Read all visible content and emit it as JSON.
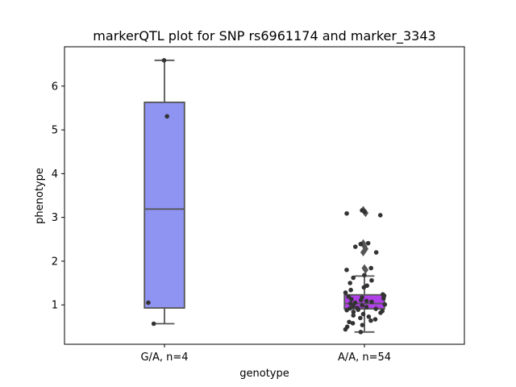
{
  "chart_data": {
    "type": "box",
    "title": "markerQTL plot for SNP rs6961174 and marker_3343",
    "xlabel": "genotype",
    "ylabel": "phenotype",
    "ylim": [
      0.1,
      6.9
    ],
    "yticks": [
      1,
      2,
      3,
      4,
      5,
      6
    ],
    "grid": false,
    "categories": [
      "G/A, n=4",
      "A/A, n=54"
    ],
    "boxes": [
      {
        "category": "G/A, n=4",
        "color": "#8f93f2",
        "q1": 0.93,
        "median": 3.19,
        "q3": 5.63,
        "whisker_low": 0.57,
        "whisker_high": 6.59,
        "outliers": []
      },
      {
        "category": "A/A, n=54",
        "color": "#b040e8",
        "q1": 0.91,
        "median": 1.03,
        "q3": 1.23,
        "whisker_low": 0.38,
        "whisker_high": 1.66,
        "outliers": [
          3.17,
          3.13,
          3.1,
          2.41,
          2.34,
          2.28,
          2.2,
          1.84,
          1.8
        ]
      }
    ],
    "points": [
      {
        "category": "G/A, n=4",
        "values": [
          6.59,
          5.31,
          1.05,
          0.57
        ]
      },
      {
        "category": "A/A, n=54",
        "values": [
          3.16,
          3.13,
          3.09,
          3.05,
          2.41,
          2.39,
          2.33,
          2.2,
          1.84,
          1.8,
          1.68,
          1.62,
          1.56,
          1.5,
          1.44,
          1.4,
          1.34,
          1.28,
          1.24,
          1.21,
          1.19,
          1.17,
          1.15,
          1.13,
          1.11,
          1.09,
          1.07,
          1.05,
          1.03,
          1.01,
          0.99,
          0.97,
          0.95,
          0.93,
          0.92,
          0.91,
          0.9,
          0.89,
          0.88,
          0.86,
          0.84,
          0.82,
          0.79,
          0.76,
          0.73,
          0.7,
          0.67,
          0.64,
          0.61,
          0.58,
          0.54,
          0.5,
          0.44,
          0.38
        ]
      }
    ],
    "point_color": "#333333",
    "line_color": "#555555"
  }
}
